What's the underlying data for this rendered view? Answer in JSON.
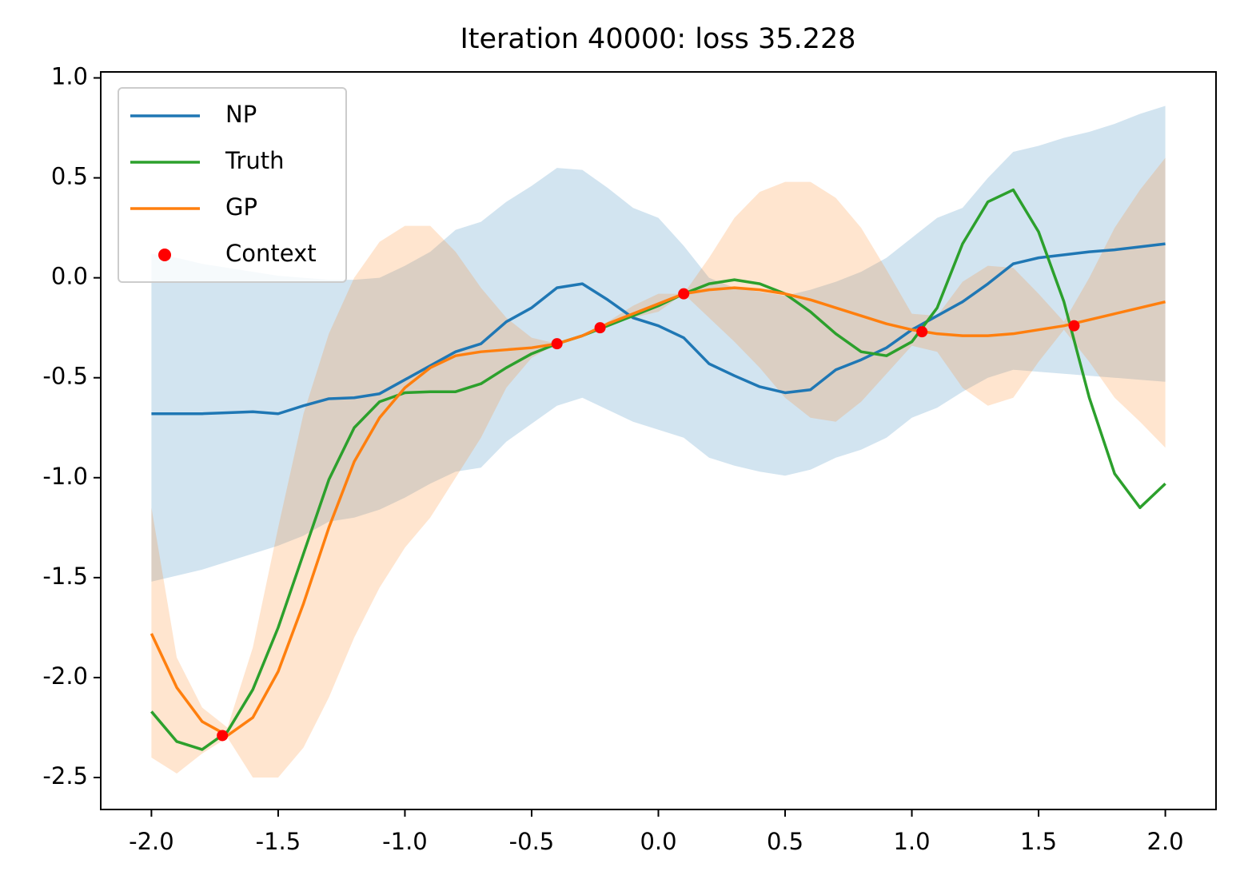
{
  "chart_data": {
    "type": "line",
    "title": "Iteration 40000: loss 35.228",
    "x": [
      -2.0,
      -1.9,
      -1.8,
      -1.7,
      -1.6,
      -1.5,
      -1.4,
      -1.3,
      -1.2,
      -1.1,
      -1.0,
      -0.9,
      -0.8,
      -0.7,
      -0.6,
      -0.5,
      -0.4,
      -0.3,
      -0.2,
      -0.1,
      0.0,
      0.1,
      0.2,
      0.3,
      0.4,
      0.5,
      0.6,
      0.7,
      0.8,
      0.9,
      1.0,
      1.1,
      1.2,
      1.3,
      1.4,
      1.5,
      1.6,
      1.7,
      1.8,
      1.9,
      2.0
    ],
    "series": [
      {
        "name": "NP",
        "color": "#1f77b4",
        "band_alpha": 0.2,
        "values": [
          -0.68,
          -0.68,
          -0.68,
          -0.675,
          -0.67,
          -0.68,
          -0.64,
          -0.605,
          -0.6,
          -0.58,
          -0.51,
          -0.44,
          -0.37,
          -0.33,
          -0.22,
          -0.15,
          -0.05,
          -0.03,
          -0.11,
          -0.2,
          -0.24,
          -0.3,
          -0.43,
          -0.49,
          -0.545,
          -0.575,
          -0.56,
          -0.46,
          -0.41,
          -0.35,
          -0.26,
          -0.19,
          -0.12,
          -0.03,
          0.07,
          0.1,
          0.115,
          0.13,
          0.14,
          0.155,
          0.17
        ],
        "band_lower": [
          -1.52,
          -1.49,
          -1.46,
          -1.42,
          -1.38,
          -1.34,
          -1.29,
          -1.22,
          -1.2,
          -1.16,
          -1.1,
          -1.03,
          -0.97,
          -0.95,
          -0.82,
          -0.73,
          -0.64,
          -0.6,
          -0.66,
          -0.72,
          -0.76,
          -0.8,
          -0.9,
          -0.94,
          -0.97,
          -0.99,
          -0.96,
          -0.9,
          -0.86,
          -0.8,
          -0.7,
          -0.65,
          -0.57,
          -0.5,
          -0.46,
          -0.47,
          -0.48,
          -0.49,
          -0.5,
          -0.51,
          -0.52
        ],
        "band_upper": [
          0.12,
          0.1,
          0.07,
          0.05,
          0.03,
          0.01,
          0.0,
          -0.01,
          -0.01,
          0.0,
          0.06,
          0.13,
          0.24,
          0.28,
          0.38,
          0.46,
          0.55,
          0.54,
          0.45,
          0.35,
          0.3,
          0.16,
          0.0,
          -0.05,
          -0.07,
          -0.09,
          -0.06,
          -0.02,
          0.03,
          0.1,
          0.2,
          0.3,
          0.35,
          0.5,
          0.63,
          0.66,
          0.7,
          0.73,
          0.77,
          0.82,
          0.86
        ]
      },
      {
        "name": "Truth",
        "color": "#2ca02c",
        "values": [
          -2.17,
          -2.32,
          -2.36,
          -2.27,
          -2.06,
          -1.75,
          -1.38,
          -1.01,
          -0.75,
          -0.62,
          -0.575,
          -0.57,
          -0.57,
          -0.53,
          -0.45,
          -0.38,
          -0.33,
          -0.29,
          -0.24,
          -0.19,
          -0.14,
          -0.08,
          -0.03,
          -0.01,
          -0.03,
          -0.08,
          -0.17,
          -0.28,
          -0.37,
          -0.39,
          -0.32,
          -0.15,
          0.17,
          0.38,
          0.44,
          0.23,
          -0.12,
          -0.6,
          -0.98,
          -1.15,
          -1.03
        ]
      },
      {
        "name": "GP",
        "color": "#ff7f0e",
        "band_alpha": 0.2,
        "values": [
          -1.78,
          -2.05,
          -2.22,
          -2.29,
          -2.2,
          -1.97,
          -1.63,
          -1.25,
          -0.92,
          -0.7,
          -0.55,
          -0.45,
          -0.39,
          -0.37,
          -0.36,
          -0.35,
          -0.33,
          -0.29,
          -0.23,
          -0.18,
          -0.13,
          -0.08,
          -0.06,
          -0.05,
          -0.06,
          -0.08,
          -0.11,
          -0.15,
          -0.19,
          -0.23,
          -0.26,
          -0.28,
          -0.29,
          -0.29,
          -0.28,
          -0.26,
          -0.24,
          -0.21,
          -0.18,
          -0.15,
          -0.12
        ],
        "band_lower": [
          -2.4,
          -2.48,
          -2.38,
          -2.3,
          -2.5,
          -2.5,
          -2.35,
          -2.1,
          -1.8,
          -1.55,
          -1.35,
          -1.2,
          -1.0,
          -0.8,
          -0.55,
          -0.4,
          -0.33,
          -0.29,
          -0.24,
          -0.2,
          -0.17,
          -0.08,
          -0.2,
          -0.32,
          -0.45,
          -0.6,
          -0.7,
          -0.72,
          -0.62,
          -0.48,
          -0.34,
          -0.37,
          -0.55,
          -0.64,
          -0.6,
          -0.42,
          -0.26,
          -0.42,
          -0.6,
          -0.72,
          -0.85
        ],
        "band_upper": [
          -1.15,
          -1.9,
          -2.15,
          -2.25,
          -1.85,
          -1.25,
          -0.68,
          -0.28,
          0.0,
          0.18,
          0.26,
          0.26,
          0.13,
          -0.05,
          -0.2,
          -0.3,
          -0.33,
          -0.29,
          -0.22,
          -0.14,
          -0.08,
          -0.08,
          0.1,
          0.3,
          0.43,
          0.48,
          0.48,
          0.4,
          0.25,
          0.04,
          -0.18,
          -0.19,
          -0.02,
          0.06,
          0.05,
          -0.08,
          -0.22,
          0.0,
          0.25,
          0.44,
          0.6
        ]
      }
    ],
    "context": {
      "name": "Context",
      "color": "#ff0000",
      "x": [
        -1.72,
        -0.4,
        -0.23,
        0.1,
        1.04,
        1.64
      ],
      "y": [
        -2.29,
        -0.33,
        -0.25,
        -0.08,
        -0.27,
        -0.24
      ]
    },
    "xlim": [
      -2.2,
      2.2
    ],
    "ylim": [
      -2.66,
      1.03
    ],
    "xticks": [
      {
        "value": -2.0,
        "label": "-2.0"
      },
      -1.5,
      {
        "value": -1.0,
        "label": "-1.0"
      },
      -0.5,
      {
        "value": 0.0,
        "label": "0.0"
      },
      0.5,
      {
        "value": 1.0,
        "label": "1.0"
      },
      1.5,
      {
        "value": 2.0,
        "label": "2.0"
      }
    ],
    "yticks": [
      -2.5,
      {
        "value": -2.0,
        "label": "-2.0"
      },
      -1.5,
      {
        "value": -1.0,
        "label": "-1.0"
      },
      -0.5,
      {
        "value": 0.0,
        "label": "0.0"
      },
      0.5,
      {
        "value": 1.0,
        "label": "1.0"
      }
    ],
    "grid": false,
    "legend": "upper left"
  }
}
